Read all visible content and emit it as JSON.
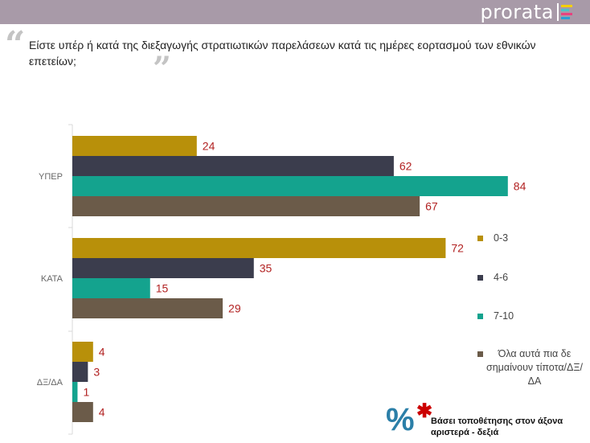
{
  "header": {
    "brand": "prorata"
  },
  "question": {
    "open_quote": "“",
    "close_quote": "”",
    "text": "Είστε υπέρ ή κατά της διεξαγωγής στρατιωτικών παρελάσεων κατά τις ημέρες εορτασμού των εθνικών επετείων;"
  },
  "colors": {
    "topbar": "#a89aa8",
    "label_value": "#b22222",
    "brand_mark": [
      "#f5d000",
      "#4cc3c9",
      "#e8417f",
      "#2a9fd6"
    ]
  },
  "chart_data": {
    "type": "bar",
    "orientation": "horizontal",
    "categories": [
      "ΥΠΕΡ",
      "ΚΑΤΑ",
      "ΔΞ/ΔΑ"
    ],
    "series": [
      {
        "name": "0-3",
        "color": "#b8900a",
        "values": [
          24,
          72,
          4
        ]
      },
      {
        "name": "4-6",
        "color": "#3b3d4d",
        "values": [
          62,
          35,
          3
        ]
      },
      {
        "name": "7-10",
        "color": "#14a38e",
        "values": [
          84,
          15,
          1
        ]
      },
      {
        "name": "Όλα αυτά πια δε σημαίνουν τίποτα/ΔΞ/ΔΑ",
        "color": "#6b5b49",
        "values": [
          67,
          29,
          4
        ]
      }
    ],
    "data_labels": true,
    "legend_position": "right",
    "grid": false
  },
  "footnote": {
    "icon_percent": "%",
    "icon_star": "✱",
    "text": "Βάσει τοποθέτησης στον άξονα αριστερά - δεξιά"
  }
}
